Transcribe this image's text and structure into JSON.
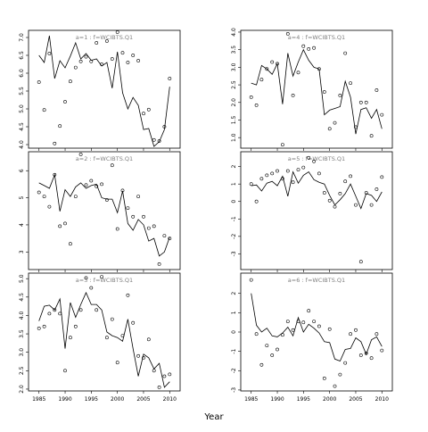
{
  "figure": {
    "xlabel": "Year"
  },
  "chart_data": [
    {
      "type": "scatter",
      "title": "a=1 : f=WCIBTS.Q1",
      "xlim": [
        1983,
        2012
      ],
      "ylim": [
        3.9,
        7.2
      ],
      "xticks": [
        1985,
        1990,
        1995,
        2000,
        2005,
        2010
      ],
      "yticks": [
        4.0,
        4.5,
        5.0,
        5.5,
        6.0,
        6.5,
        7.0
      ],
      "ytick_labels": [
        "4.0",
        "4.5",
        "5.0",
        "5.5",
        "6.0",
        "6.5",
        "7.0"
      ],
      "show_xtick_labels": false,
      "points": [
        [
          1985,
          5.75
        ],
        [
          1986,
          4.97
        ],
        [
          1987,
          6.55
        ],
        [
          1988,
          4.03
        ],
        [
          1989,
          4.52
        ],
        [
          1990,
          5.2
        ],
        [
          1991,
          5.77
        ],
        [
          1992,
          6.16
        ],
        [
          1993,
          6.33
        ],
        [
          1994,
          6.46
        ],
        [
          1995,
          6.33
        ],
        [
          1996,
          6.85
        ],
        [
          1997,
          6.25
        ],
        [
          1998,
          6.9
        ],
        [
          1999,
          6.4
        ],
        [
          2000,
          7.15
        ],
        [
          2001,
          6.57
        ],
        [
          2002,
          6.3
        ],
        [
          2003,
          6.5
        ],
        [
          2004,
          6.35
        ],
        [
          2005,
          4.87
        ],
        [
          2006,
          4.98
        ],
        [
          2007,
          4.13
        ],
        [
          2008,
          4.1
        ],
        [
          2009,
          4.5
        ],
        [
          2010,
          5.85
        ]
      ],
      "line": [
        [
          1985,
          6.5
        ],
        [
          1986,
          6.3
        ],
        [
          1987,
          7.05
        ],
        [
          1988,
          5.85
        ],
        [
          1989,
          6.35
        ],
        [
          1990,
          6.15
        ],
        [
          1991,
          6.48
        ],
        [
          1992,
          6.85
        ],
        [
          1993,
          6.4
        ],
        [
          1994,
          6.55
        ],
        [
          1995,
          6.36
        ],
        [
          1996,
          6.4
        ],
        [
          1997,
          6.2
        ],
        [
          1998,
          6.3
        ],
        [
          1999,
          5.58
        ],
        [
          2000,
          6.6
        ],
        [
          2001,
          5.45
        ],
        [
          2002,
          5.0
        ],
        [
          2003,
          5.32
        ],
        [
          2004,
          5.1
        ],
        [
          2005,
          4.42
        ],
        [
          2006,
          4.45
        ],
        [
          2007,
          3.95
        ],
        [
          2008,
          4.08
        ],
        [
          2009,
          4.42
        ],
        [
          2010,
          5.62
        ]
      ]
    },
    {
      "type": "scatter",
      "title": "a=4 : f=WCIBTS.Q1",
      "xlim": [
        1983,
        2012
      ],
      "ylim": [
        0.7,
        4.05
      ],
      "xticks": [
        1985,
        1990,
        1995,
        2000,
        2005,
        2010
      ],
      "yticks": [
        1.0,
        1.5,
        2.0,
        2.5,
        3.0,
        3.5,
        4.0
      ],
      "ytick_labels": [
        "1.0",
        "1.5",
        "2.0",
        "2.5",
        "3.0",
        "3.5",
        "4.0"
      ],
      "show_xtick_labels": false,
      "points": [
        [
          1985,
          2.15
        ],
        [
          1986,
          1.92
        ],
        [
          1987,
          2.65
        ],
        [
          1988,
          2.95
        ],
        [
          1989,
          3.15
        ],
        [
          1990,
          3.1
        ],
        [
          1991,
          0.8
        ],
        [
          1992,
          3.95
        ],
        [
          1993,
          2.2
        ],
        [
          1994,
          2.85
        ],
        [
          1995,
          3.6
        ],
        [
          1996,
          3.52
        ],
        [
          1997,
          3.55
        ],
        [
          1998,
          2.95
        ],
        [
          1999,
          2.3
        ],
        [
          2000,
          1.25
        ],
        [
          2001,
          1.42
        ],
        [
          2002,
          2.2
        ],
        [
          2003,
          3.4
        ],
        [
          2004,
          2.55
        ],
        [
          2005,
          1.3
        ],
        [
          2006,
          2.0
        ],
        [
          2007,
          2.0
        ],
        [
          2008,
          1.05
        ],
        [
          2009,
          2.35
        ],
        [
          2010,
          1.65
        ]
      ],
      "line": [
        [
          1985,
          2.55
        ],
        [
          1986,
          2.5
        ],
        [
          1987,
          3.05
        ],
        [
          1988,
          2.95
        ],
        [
          1989,
          2.8
        ],
        [
          1990,
          3.1
        ],
        [
          1991,
          1.95
        ],
        [
          1992,
          3.4
        ],
        [
          1993,
          2.75
        ],
        [
          1994,
          3.15
        ],
        [
          1995,
          3.5
        ],
        [
          1996,
          3.2
        ],
        [
          1997,
          3.0
        ],
        [
          1998,
          2.95
        ],
        [
          1999,
          1.65
        ],
        [
          2000,
          1.78
        ],
        [
          2001,
          1.83
        ],
        [
          2002,
          1.88
        ],
        [
          2003,
          2.6
        ],
        [
          2004,
          2.15
        ],
        [
          2005,
          1.1
        ],
        [
          2006,
          1.8
        ],
        [
          2007,
          1.85
        ],
        [
          2008,
          1.55
        ],
        [
          2009,
          1.8
        ],
        [
          2010,
          1.25
        ]
      ]
    },
    {
      "type": "scatter",
      "title": "a=2 : f=WCIBTS.Q1",
      "xlim": [
        1983,
        2012
      ],
      "ylim": [
        2.35,
        6.7
      ],
      "xticks": [
        1985,
        1990,
        1995,
        2000,
        2005,
        2010
      ],
      "yticks": [
        3,
        4,
        5,
        6
      ],
      "ytick_labels": [
        "3",
        "4",
        "5",
        "6"
      ],
      "show_xtick_labels": false,
      "points": [
        [
          1985,
          5.2
        ],
        [
          1986,
          5.05
        ],
        [
          1987,
          4.67
        ],
        [
          1988,
          5.85
        ],
        [
          1989,
          3.95
        ],
        [
          1990,
          4.05
        ],
        [
          1991,
          3.3
        ],
        [
          1992,
          5.05
        ],
        [
          1993,
          6.6
        ],
        [
          1994,
          5.47
        ],
        [
          1995,
          5.63
        ],
        [
          1996,
          5.42
        ],
        [
          1997,
          5.5
        ],
        [
          1998,
          4.92
        ],
        [
          1999,
          6.2
        ],
        [
          2000,
          3.85
        ],
        [
          2001,
          5.27
        ],
        [
          2002,
          4.62
        ],
        [
          2003,
          4.3
        ],
        [
          2004,
          5.05
        ],
        [
          2005,
          4.3
        ],
        [
          2006,
          3.88
        ],
        [
          2007,
          3.95
        ],
        [
          2008,
          2.55
        ],
        [
          2009,
          3.6
        ],
        [
          2010,
          3.5
        ]
      ],
      "line": [
        [
          1985,
          5.55
        ],
        [
          1986,
          5.45
        ],
        [
          1987,
          5.35
        ],
        [
          1988,
          5.85
        ],
        [
          1989,
          4.5
        ],
        [
          1990,
          5.3
        ],
        [
          1991,
          5.05
        ],
        [
          1992,
          5.4
        ],
        [
          1993,
          5.55
        ],
        [
          1994,
          5.35
        ],
        [
          1995,
          5.45
        ],
        [
          1996,
          5.5
        ],
        [
          1997,
          5.0
        ],
        [
          1998,
          4.95
        ],
        [
          1999,
          4.95
        ],
        [
          2000,
          4.45
        ],
        [
          2001,
          5.25
        ],
        [
          2002,
          4.05
        ],
        [
          2003,
          3.8
        ],
        [
          2004,
          4.2
        ],
        [
          2005,
          4.0
        ],
        [
          2006,
          3.4
        ],
        [
          2007,
          3.5
        ],
        [
          2008,
          2.85
        ],
        [
          2009,
          3.0
        ],
        [
          2010,
          3.55
        ]
      ]
    },
    {
      "type": "scatter",
      "title": "a=5 : f=WCIBTS.Q1",
      "xlim": [
        1983,
        2012
      ],
      "ylim": [
        -3.9,
        2.85
      ],
      "xticks": [
        1985,
        1990,
        1995,
        2000,
        2005,
        2010
      ],
      "yticks": [
        -3,
        -2,
        -1,
        0,
        1,
        2
      ],
      "ytick_labels": [
        "-3",
        "-2",
        "-1",
        "0",
        "1",
        "2"
      ],
      "show_xtick_labels": false,
      "points": [
        [
          1985,
          1.0
        ],
        [
          1986,
          0.0
        ],
        [
          1987,
          1.3
        ],
        [
          1988,
          1.5
        ],
        [
          1989,
          1.6
        ],
        [
          1990,
          1.75
        ],
        [
          1991,
          1.3
        ],
        [
          1992,
          1.75
        ],
        [
          1993,
          1.1
        ],
        [
          1994,
          1.82
        ],
        [
          1995,
          1.95
        ],
        [
          1996,
          2.5
        ],
        [
          1997,
          2.3
        ],
        [
          1998,
          1.6
        ],
        [
          1999,
          0.5
        ],
        [
          2000,
          0.05
        ],
        [
          2001,
          -0.3
        ],
        [
          2002,
          0.45
        ],
        [
          2003,
          1.15
        ],
        [
          2004,
          1.45
        ],
        [
          2005,
          -0.2
        ],
        [
          2006,
          -3.45
        ],
        [
          2007,
          0.5
        ],
        [
          2008,
          -0.2
        ],
        [
          2009,
          0.7
        ],
        [
          2010,
          1.4
        ]
      ],
      "line": [
        [
          1985,
          0.9
        ],
        [
          1986,
          0.95
        ],
        [
          1987,
          0.6
        ],
        [
          1988,
          1.05
        ],
        [
          1989,
          1.15
        ],
        [
          1990,
          0.9
        ],
        [
          1991,
          1.45
        ],
        [
          1992,
          0.3
        ],
        [
          1993,
          1.7
        ],
        [
          1994,
          1.05
        ],
        [
          1995,
          1.5
        ],
        [
          1996,
          1.7
        ],
        [
          1997,
          1.25
        ],
        [
          1998,
          1.1
        ],
        [
          1999,
          1.0
        ],
        [
          2000,
          0.35
        ],
        [
          2001,
          -0.2
        ],
        [
          2002,
          0.1
        ],
        [
          2003,
          0.45
        ],
        [
          2004,
          1.0
        ],
        [
          2005,
          0.3
        ],
        [
          2006,
          -0.4
        ],
        [
          2007,
          0.45
        ],
        [
          2008,
          0.35
        ],
        [
          2009,
          0.0
        ],
        [
          2010,
          0.55
        ]
      ]
    },
    {
      "type": "scatter",
      "title": "a=3 : f=WCIBTS.Q1",
      "xlim": [
        1983,
        2012
      ],
      "ylim": [
        1.95,
        5.15
      ],
      "xticks": [
        1985,
        1990,
        1995,
        2000,
        2005,
        2010
      ],
      "yticks": [
        2.0,
        2.5,
        3.0,
        3.5,
        4.0,
        4.5,
        5.0
      ],
      "ytick_labels": [
        "2.0",
        "2.5",
        "3.0",
        "3.5",
        "4.0",
        "4.5",
        "5.0"
      ],
      "show_xtick_labels": true,
      "points": [
        [
          1985,
          3.65
        ],
        [
          1986,
          3.7
        ],
        [
          1987,
          4.05
        ],
        [
          1988,
          4.15
        ],
        [
          1989,
          4.05
        ],
        [
          1990,
          2.5
        ],
        [
          1991,
          3.4
        ],
        [
          1992,
          3.7
        ],
        [
          1993,
          4.15
        ],
        [
          1994,
          5.02
        ],
        [
          1995,
          4.75
        ],
        [
          1996,
          4.15
        ],
        [
          1997,
          5.05
        ],
        [
          1998,
          3.4
        ],
        [
          1999,
          3.9
        ],
        [
          2000,
          2.72
        ],
        [
          2001,
          3.45
        ],
        [
          2002,
          4.55
        ],
        [
          2003,
          3.8
        ],
        [
          2004,
          2.9
        ],
        [
          2005,
          2.85
        ],
        [
          2006,
          3.35
        ],
        [
          2007,
          2.5
        ],
        [
          2008,
          2.05
        ],
        [
          2009,
          2.35
        ],
        [
          2010,
          2.4
        ]
      ],
      "line": [
        [
          1985,
          3.85
        ],
        [
          1986,
          4.25
        ],
        [
          1987,
          4.28
        ],
        [
          1988,
          4.15
        ],
        [
          1989,
          4.45
        ],
        [
          1990,
          3.1
        ],
        [
          1991,
          4.35
        ],
        [
          1992,
          3.95
        ],
        [
          1993,
          4.3
        ],
        [
          1994,
          4.62
        ],
        [
          1995,
          4.3
        ],
        [
          1996,
          4.3
        ],
        [
          1997,
          4.15
        ],
        [
          1998,
          3.55
        ],
        [
          1999,
          3.45
        ],
        [
          2000,
          3.4
        ],
        [
          2001,
          3.3
        ],
        [
          2002,
          3.9
        ],
        [
          2003,
          3.1
        ],
        [
          2004,
          2.35
        ],
        [
          2005,
          2.95
        ],
        [
          2006,
          2.85
        ],
        [
          2007,
          2.55
        ],
        [
          2008,
          2.7
        ],
        [
          2009,
          2.05
        ],
        [
          2010,
          2.2
        ]
      ]
    },
    {
      "type": "scatter",
      "title": "a=6 : f=WCIBTS.Q1",
      "xlim": [
        1983,
        2012
      ],
      "ylim": [
        -3.05,
        3.05
      ],
      "xticks": [
        1985,
        1990,
        1995,
        2000,
        2005,
        2010
      ],
      "yticks": [
        -3,
        -2,
        -1,
        0,
        1,
        2
      ],
      "ytick_labels": [
        "-3",
        "-2",
        "-1",
        "0",
        "1",
        "2"
      ],
      "show_xtick_labels": true,
      "points": [
        [
          1985,
          2.7
        ],
        [
          1986,
          -0.1
        ],
        [
          1987,
          -1.7
        ],
        [
          1988,
          -0.7
        ],
        [
          1989,
          -1.2
        ],
        [
          1990,
          -0.9
        ],
        [
          1991,
          -0.15
        ],
        [
          1992,
          0.55
        ],
        [
          1993,
          0.1
        ],
        [
          1994,
          0.55
        ],
        [
          1995,
          0.5
        ],
        [
          1996,
          1.1
        ],
        [
          1997,
          0.55
        ],
        [
          1998,
          0.3
        ],
        [
          1999,
          -2.4
        ],
        [
          2000,
          0.15
        ],
        [
          2001,
          -2.8
        ],
        [
          2002,
          -2.2
        ],
        [
          2003,
          -1.6
        ],
        [
          2004,
          -0.1
        ],
        [
          2005,
          0.1
        ],
        [
          2006,
          -1.2
        ],
        [
          2007,
          -1.1
        ],
        [
          2008,
          -1.35
        ],
        [
          2009,
          -0.1
        ],
        [
          2010,
          -0.95
        ]
      ],
      "line": [
        [
          1985,
          2.0
        ],
        [
          1986,
          0.35
        ],
        [
          1987,
          0.0
        ],
        [
          1988,
          0.2
        ],
        [
          1989,
          -0.2
        ],
        [
          1990,
          -0.25
        ],
        [
          1991,
          -0.05
        ],
        [
          1992,
          0.25
        ],
        [
          1993,
          -0.2
        ],
        [
          1994,
          0.75
        ],
        [
          1995,
          0.0
        ],
        [
          1996,
          0.4
        ],
        [
          1997,
          0.2
        ],
        [
          1998,
          -0.05
        ],
        [
          1999,
          -0.5
        ],
        [
          2000,
          -0.55
        ],
        [
          2001,
          -1.4
        ],
        [
          2002,
          -1.5
        ],
        [
          2003,
          -0.9
        ],
        [
          2004,
          -0.85
        ],
        [
          2005,
          -0.3
        ],
        [
          2006,
          -0.5
        ],
        [
          2007,
          -1.15
        ],
        [
          2008,
          -0.4
        ],
        [
          2009,
          -0.25
        ],
        [
          2010,
          -0.75
        ]
      ]
    }
  ]
}
